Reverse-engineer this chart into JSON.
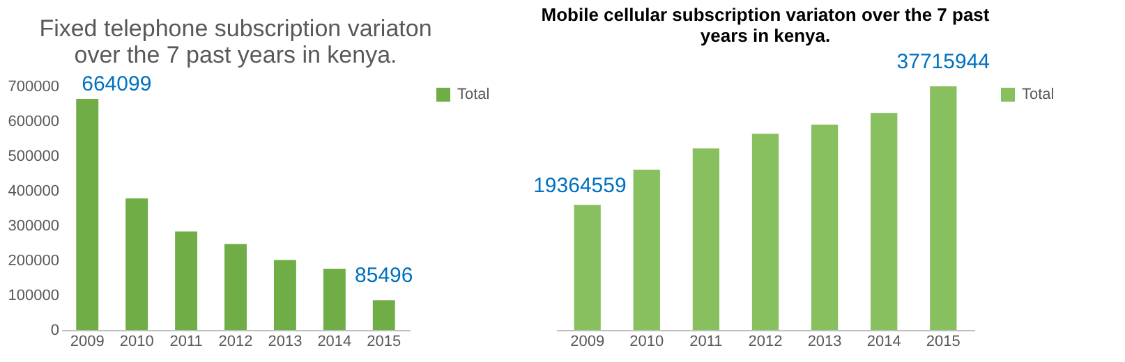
{
  "chart_data": [
    {
      "type": "bar",
      "title": "Fixed telephone subscription variaton over the 7 past years in kenya.",
      "categories": [
        "2009",
        "2010",
        "2011",
        "2012",
        "2013",
        "2014",
        "2015"
      ],
      "series": [
        {
          "name": "Total",
          "color": "#70ad47",
          "values": [
            664099,
            378000,
            283000,
            247000,
            201000,
            176000,
            85496
          ],
          "value_labels": [
            "664099",
            null,
            null,
            null,
            null,
            null,
            "85496"
          ]
        }
      ],
      "ylim": [
        0,
        700000
      ],
      "yticks": [
        0,
        100000,
        200000,
        300000,
        400000,
        500000,
        600000,
        700000
      ],
      "grid": false,
      "legend": "right"
    },
    {
      "type": "bar",
      "title": "Mobile cellular subscription variaton over the 7 past years in kenya.",
      "categories": [
        "2009",
        "2010",
        "2011",
        "2012",
        "2013",
        "2014",
        "2015"
      ],
      "series": [
        {
          "name": "Total",
          "color": "#88bf5f",
          "values": [
            19364559,
            24800000,
            28100000,
            30400000,
            31800000,
            33600000,
            37715944
          ],
          "value_labels": [
            "19364559",
            null,
            null,
            null,
            null,
            null,
            "37715944"
          ]
        }
      ],
      "grid": false,
      "legend": "right"
    }
  ]
}
